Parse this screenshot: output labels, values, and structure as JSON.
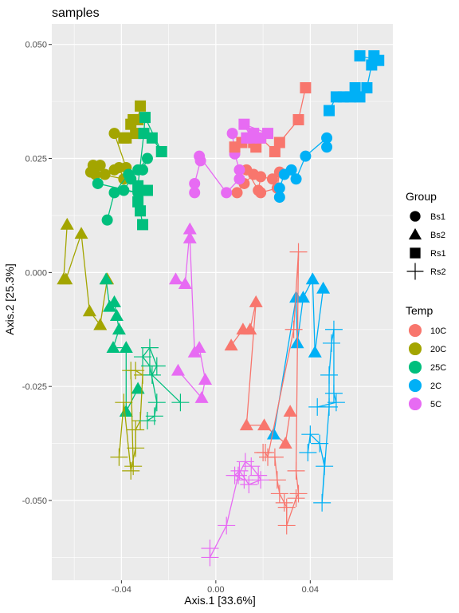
{
  "chart_data": {
    "type": "scatter",
    "title": "samples",
    "xlabel": "Axis.1   [33.6%]",
    "ylabel": "Axis.2   [25.3%]",
    "xlim": [
      -0.0695,
      0.075
    ],
    "ylim": [
      -0.0675,
      0.0545
    ],
    "x_ticks": [
      -0.04,
      0.0,
      0.04
    ],
    "x_tick_labels": [
      "-0.04",
      "0.00",
      "0.04"
    ],
    "y_ticks": [
      -0.05,
      -0.025,
      0.0,
      0.025,
      0.05
    ],
    "y_tick_labels": [
      "-0.050",
      "-0.025",
      "0.000",
      "0.025",
      "0.050"
    ],
    "grid": true,
    "legend_placement": "right",
    "legends": [
      {
        "title": "Group",
        "entries": [
          {
            "label": "Bs1",
            "shape": "circle"
          },
          {
            "label": "Bs2",
            "shape": "triangle"
          },
          {
            "label": "Rs1",
            "shape": "square"
          },
          {
            "label": "Rs2",
            "shape": "cross"
          }
        ]
      },
      {
        "title": "Temp",
        "entries": [
          {
            "label": "10C",
            "color": "#F8766D"
          },
          {
            "label": "20C",
            "color": "#A3A500"
          },
          {
            "label": "25C",
            "color": "#00BF7D"
          },
          {
            "label": "2C",
            "color": "#00B0F6"
          },
          {
            "label": "5C",
            "color": "#E76BF3"
          }
        ]
      }
    ],
    "series": [
      {
        "group": "Bs1",
        "temp": "10C",
        "shape": "circle",
        "color": "#F8766D",
        "points": [
          [
            0.009,
            0.0175
          ],
          [
            0.012,
            0.0195
          ],
          [
            0.016,
            0.0215
          ],
          [
            0.013,
            0.0225
          ],
          [
            0.018,
            0.018
          ],
          [
            0.019,
            0.021
          ],
          [
            0.024,
            0.0205
          ],
          [
            0.027,
            0.022
          ],
          [
            0.026,
            0.0185
          ],
          [
            0.019,
            0.0175
          ]
        ]
      },
      {
        "group": "Bs1",
        "temp": "20C",
        "shape": "circle",
        "color": "#A3A500",
        "points": [
          [
            -0.052,
            0.0235
          ],
          [
            -0.049,
            0.0235
          ],
          [
            -0.047,
            0.0215
          ],
          [
            -0.043,
            0.0225
          ],
          [
            -0.051,
            0.0215
          ],
          [
            -0.053,
            0.022
          ],
          [
            -0.039,
            0.0205
          ],
          [
            -0.041,
            0.023
          ],
          [
            -0.038,
            0.023
          ],
          [
            -0.043,
            0.0305
          ]
        ]
      },
      {
        "group": "Bs1",
        "temp": "25C",
        "shape": "circle",
        "color": "#00BF7D",
        "points": [
          [
            -0.046,
            0.0115
          ],
          [
            -0.043,
            0.0175
          ],
          [
            -0.037,
            0.0215
          ],
          [
            -0.033,
            0.0225
          ],
          [
            -0.031,
            0.0225
          ],
          [
            -0.029,
            0.025
          ],
          [
            -0.036,
            0.0205
          ],
          [
            -0.039,
            0.018
          ],
          [
            -0.033,
            0.0175
          ],
          [
            -0.05,
            0.0195
          ]
        ]
      },
      {
        "group": "Bs1",
        "temp": "2C",
        "shape": "circle",
        "color": "#00B0F6",
        "points": [
          [
            0.027,
            0.0165
          ],
          [
            0.027,
            0.0185
          ],
          [
            0.029,
            0.0215
          ],
          [
            0.032,
            0.0225
          ],
          [
            0.034,
            0.0205
          ],
          [
            0.038,
            0.0255
          ],
          [
            0.047,
            0.0295
          ],
          [
            0.047,
            0.0275
          ]
        ]
      },
      {
        "group": "Bs1",
        "temp": "5C",
        "shape": "circle",
        "color": "#E76BF3",
        "points": [
          [
            -0.009,
            0.0175
          ],
          [
            -0.009,
            0.0195
          ],
          [
            -0.0065,
            0.0245
          ],
          [
            -0.007,
            0.0255
          ],
          [
            0.0045,
            0.0175
          ],
          [
            0.01,
            0.0205
          ],
          [
            0.01,
            0.0225
          ],
          [
            0.008,
            0.026
          ],
          [
            0.007,
            0.0305
          ]
        ]
      },
      {
        "group": "Bs2",
        "temp": "10C",
        "shape": "triangle",
        "color": "#F8766D",
        "points": [
          [
            0.0065,
            -0.016
          ],
          [
            0.0115,
            -0.0125
          ],
          [
            0.0145,
            -0.0125
          ],
          [
            0.017,
            -0.0065
          ],
          [
            0.013,
            -0.0335
          ],
          [
            0.0205,
            -0.0335
          ],
          [
            0.0295,
            -0.0375
          ],
          [
            0.0315,
            -0.0305
          ]
        ]
      },
      {
        "group": "Bs2",
        "temp": "20C",
        "shape": "triangle",
        "color": "#A3A500",
        "points": [
          [
            -0.063,
            0.0105
          ],
          [
            -0.0645,
            -0.0015
          ],
          [
            -0.0635,
            -0.0015
          ],
          [
            -0.057,
            0.0085
          ],
          [
            -0.0535,
            -0.0085
          ],
          [
            -0.049,
            -0.0115
          ],
          [
            -0.046,
            -0.0015
          ]
        ]
      },
      {
        "group": "Bs2",
        "temp": "25C",
        "shape": "triangle",
        "color": "#00BF7D",
        "points": [
          [
            -0.0465,
            -0.0015
          ],
          [
            -0.045,
            -0.0075
          ],
          [
            -0.043,
            -0.0065
          ],
          [
            -0.042,
            -0.0095
          ],
          [
            -0.041,
            -0.0125
          ],
          [
            -0.0435,
            -0.0165
          ],
          [
            -0.038,
            -0.0165
          ],
          [
            -0.038,
            -0.0305
          ],
          [
            -0.033,
            -0.0255
          ]
        ]
      },
      {
        "group": "Bs2",
        "temp": "2C",
        "shape": "triangle",
        "color": "#00B0F6",
        "points": [
          [
            0.0245,
            -0.0355
          ],
          [
            0.034,
            -0.0055
          ],
          [
            0.0345,
            -0.0155
          ],
          [
            0.037,
            -0.0055
          ],
          [
            0.041,
            -0.0015
          ],
          [
            0.042,
            -0.0175
          ],
          [
            0.0455,
            -0.0035
          ]
        ]
      },
      {
        "group": "Bs2",
        "temp": "5C",
        "shape": "triangle",
        "color": "#E76BF3",
        "points": [
          [
            -0.017,
            -0.0015
          ],
          [
            -0.013,
            -0.0025
          ],
          [
            -0.011,
            0.0095
          ],
          [
            -0.011,
            0.0075
          ],
          [
            -0.009,
            -0.0175
          ],
          [
            -0.007,
            -0.0165
          ],
          [
            -0.0045,
            -0.0235
          ],
          [
            -0.006,
            -0.0275
          ],
          [
            -0.016,
            -0.0215
          ]
        ]
      },
      {
        "group": "Rs1",
        "temp": "10C",
        "shape": "square",
        "color": "#F8766D",
        "points": [
          [
            0.008,
            0.0275
          ],
          [
            0.011,
            0.0285
          ],
          [
            0.016,
            0.0285
          ],
          [
            0.017,
            0.0275
          ],
          [
            0.019,
            0.0295
          ],
          [
            0.025,
            0.0265
          ],
          [
            0.027,
            0.0285
          ],
          [
            0.035,
            0.0335
          ],
          [
            0.038,
            0.0405
          ]
        ]
      },
      {
        "group": "Rs1",
        "temp": "20C",
        "shape": "square",
        "color": "#A3A500",
        "points": [
          [
            -0.032,
            0.0365
          ],
          [
            -0.033,
            0.0335
          ],
          [
            -0.035,
            0.0335
          ],
          [
            -0.036,
            0.0325
          ],
          [
            -0.034,
            0.0305
          ],
          [
            -0.038,
            0.0295
          ],
          [
            -0.039,
            0.0295
          ]
        ]
      },
      {
        "group": "Rs1",
        "temp": "25C",
        "shape": "square",
        "color": "#00BF7D",
        "points": [
          [
            -0.027,
            0.0295
          ],
          [
            -0.023,
            0.0265
          ],
          [
            -0.03,
            0.034
          ],
          [
            -0.0305,
            0.0305
          ],
          [
            -0.033,
            0.019
          ],
          [
            -0.029,
            0.018
          ],
          [
            -0.033,
            0.0155
          ],
          [
            -0.032,
            0.0135
          ],
          [
            -0.031,
            0.0105
          ]
        ]
      },
      {
        "group": "Rs1",
        "temp": "2C",
        "shape": "square",
        "color": "#00B0F6",
        "points": [
          [
            0.048,
            0.0355
          ],
          [
            0.051,
            0.0385
          ],
          [
            0.054,
            0.0385
          ],
          [
            0.057,
            0.0385
          ],
          [
            0.059,
            0.0405
          ],
          [
            0.061,
            0.0385
          ],
          [
            0.064,
            0.0405
          ],
          [
            0.066,
            0.0455
          ],
          [
            0.067,
            0.0475
          ],
          [
            0.069,
            0.0465
          ],
          [
            0.061,
            0.0475
          ]
        ]
      },
      {
        "group": "Rs1",
        "temp": "5C",
        "shape": "square",
        "color": "#E76BF3",
        "points": [
          [
            0.013,
            0.0295
          ],
          [
            0.016,
            0.0305
          ],
          [
            0.019,
            0.0295
          ],
          [
            0.022,
            0.0305
          ],
          [
            0.012,
            0.0325
          ],
          [
            0.015,
            0.0295
          ]
        ]
      },
      {
        "group": "Rs2",
        "temp": "10C",
        "shape": "cross",
        "color": "#F8766D",
        "points": [
          [
            0.025,
            -0.0405
          ],
          [
            0.026,
            -0.0455
          ],
          [
            0.027,
            -0.0485
          ],
          [
            0.029,
            -0.0505
          ],
          [
            0.03,
            -0.0515
          ],
          [
            0.03,
            -0.0555
          ],
          [
            0.034,
            -0.0495
          ],
          [
            0.035,
            -0.0485
          ],
          [
            0.034,
            -0.0435
          ],
          [
            0.035,
            0.0045
          ],
          [
            0.033,
            -0.0125
          ],
          [
            0.022,
            -0.0405
          ],
          [
            0.021,
            -0.0395
          ],
          [
            0.02,
            -0.0395
          ]
        ]
      },
      {
        "group": "Rs2",
        "temp": "20C",
        "shape": "cross",
        "color": "#A3A500",
        "points": [
          [
            -0.041,
            -0.0405
          ],
          [
            -0.039,
            -0.0285
          ],
          [
            -0.036,
            -0.0435
          ],
          [
            -0.034,
            -0.0385
          ],
          [
            -0.034,
            -0.0345
          ],
          [
            -0.032,
            -0.0325
          ],
          [
            -0.031,
            -0.0225
          ],
          [
            -0.034,
            -0.0215
          ],
          [
            -0.036,
            -0.0215
          ],
          [
            -0.035,
            -0.0425
          ]
        ]
      },
      {
        "group": "Rs2",
        "temp": "25C",
        "shape": "cross",
        "color": "#00BF7D",
        "points": [
          [
            -0.029,
            -0.0325
          ],
          [
            -0.026,
            -0.0315
          ],
          [
            -0.025,
            -0.0285
          ],
          [
            -0.028,
            -0.0205
          ],
          [
            -0.031,
            -0.0185
          ],
          [
            -0.028,
            -0.0165
          ],
          [
            -0.025,
            -0.0205
          ],
          [
            -0.027,
            -0.0225
          ],
          [
            -0.015,
            -0.0285
          ]
        ]
      },
      {
        "group": "Rs2",
        "temp": "2C",
        "shape": "cross",
        "color": "#00B0F6",
        "points": [
          [
            0.039,
            -0.0395
          ],
          [
            0.04,
            -0.0355
          ],
          [
            0.044,
            -0.0375
          ],
          [
            0.046,
            -0.0425
          ],
          [
            0.045,
            -0.0505
          ],
          [
            0.048,
            -0.0295
          ],
          [
            0.048,
            -0.0225
          ],
          [
            0.049,
            -0.0155
          ],
          [
            0.05,
            -0.0125
          ],
          [
            0.05,
            -0.0265
          ],
          [
            0.051,
            -0.0285
          ],
          [
            0.043,
            -0.0295
          ]
        ]
      },
      {
        "group": "Rs2",
        "temp": "5C",
        "shape": "cross",
        "color": "#E76BF3",
        "points": [
          [
            -0.0025,
            -0.0605
          ],
          [
            -0.0025,
            -0.0625
          ],
          [
            0.0045,
            -0.0555
          ],
          [
            0.0095,
            -0.0445
          ],
          [
            0.0125,
            -0.0415
          ],
          [
            0.015,
            -0.0425
          ],
          [
            0.018,
            -0.0445
          ],
          [
            0.019,
            -0.0455
          ],
          [
            0.014,
            -0.0465
          ],
          [
            0.01,
            -0.0435
          ],
          [
            0.008,
            -0.0445
          ],
          [
            0.012,
            -0.0455
          ]
        ]
      }
    ]
  }
}
